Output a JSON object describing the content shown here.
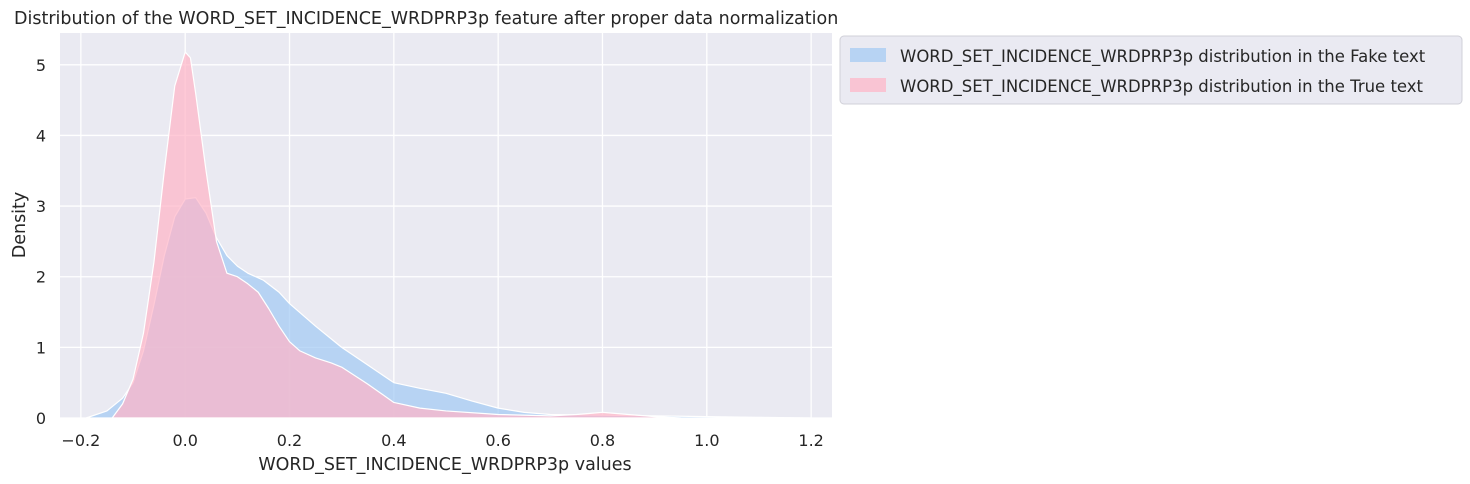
{
  "chart_data": {
    "type": "area",
    "title": "Distribution of the WORD_SET_INCIDENCE_WRDPRP3p feature after proper data normalization",
    "xlabel": "WORD_SET_INCIDENCE_WRDPRP3p values",
    "ylabel": "Density",
    "xlim": [
      -0.24,
      1.24
    ],
    "ylim": [
      0,
      5.45
    ],
    "x_ticks": [
      -0.2,
      0.0,
      0.2,
      0.4,
      0.6,
      0.8,
      1.0,
      1.2
    ],
    "x_tick_labels": [
      "−0.2",
      "0.0",
      "0.2",
      "0.4",
      "0.6",
      "0.8",
      "1.0",
      "1.2"
    ],
    "y_ticks": [
      0,
      1,
      2,
      3,
      4,
      5
    ],
    "y_tick_labels": [
      "0",
      "1",
      "2",
      "3",
      "4",
      "5"
    ],
    "grid": true,
    "legend_placement": "outside upper-right",
    "series": [
      {
        "name": "WORD_SET_INCIDENCE_WRDPRP3p distribution in the Fake text",
        "color": "#a1c9f4",
        "x": [
          -0.19,
          -0.15,
          -0.12,
          -0.1,
          -0.08,
          -0.06,
          -0.04,
          -0.02,
          0.0,
          0.02,
          0.04,
          0.06,
          0.08,
          0.1,
          0.12,
          0.15,
          0.18,
          0.2,
          0.25,
          0.3,
          0.35,
          0.4,
          0.45,
          0.5,
          0.55,
          0.6,
          0.65,
          0.7,
          0.8,
          0.9,
          1.0,
          1.1,
          1.2
        ],
        "y": [
          0.0,
          0.1,
          0.28,
          0.5,
          0.95,
          1.6,
          2.3,
          2.85,
          3.1,
          3.12,
          2.9,
          2.55,
          2.3,
          2.15,
          2.05,
          1.95,
          1.78,
          1.62,
          1.3,
          1.0,
          0.75,
          0.5,
          0.42,
          0.35,
          0.24,
          0.14,
          0.08,
          0.05,
          0.04,
          0.03,
          0.02,
          0.01,
          0.0
        ]
      },
      {
        "name": "WORD_SET_INCIDENCE_WRDPRP3p distribution in the True text",
        "color": "#ffb3c6",
        "x": [
          -0.14,
          -0.12,
          -0.1,
          -0.08,
          -0.06,
          -0.04,
          -0.02,
          0.0,
          0.01,
          0.02,
          0.04,
          0.06,
          0.08,
          0.1,
          0.12,
          0.14,
          0.16,
          0.18,
          0.2,
          0.22,
          0.25,
          0.28,
          0.3,
          0.35,
          0.4,
          0.45,
          0.5,
          0.6,
          0.7,
          0.75,
          0.8,
          0.85,
          0.9,
          0.95
        ],
        "y": [
          0.0,
          0.2,
          0.55,
          1.2,
          2.2,
          3.5,
          4.7,
          5.18,
          5.1,
          4.6,
          3.5,
          2.5,
          2.05,
          2.0,
          1.9,
          1.78,
          1.55,
          1.3,
          1.08,
          0.95,
          0.85,
          0.78,
          0.72,
          0.48,
          0.22,
          0.14,
          0.1,
          0.05,
          0.03,
          0.05,
          0.08,
          0.05,
          0.02,
          0.0
        ]
      }
    ]
  }
}
